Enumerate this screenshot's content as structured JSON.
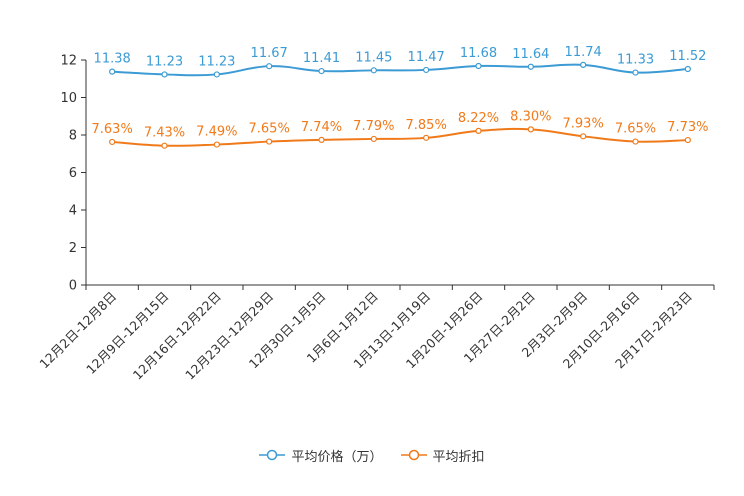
{
  "chart_data": {
    "type": "line",
    "title": "",
    "xlabel": "",
    "ylabel": "",
    "ylim": [
      0,
      12
    ],
    "yticks": [
      0,
      2,
      4,
      6,
      8,
      10,
      12
    ],
    "grid": false,
    "legend_position": "bottom-center",
    "categories": [
      "12月2日-12月8日",
      "12月9日-12月15日",
      "12月16日-12月22日",
      "12月23日-12月29日",
      "12月30日-1月5日",
      "1月6日-1月12日",
      "1月13日-1月19日",
      "1月20日-1月26日",
      "1月27日-2月2日",
      "2月3日-2月9日",
      "2月10日-2月16日",
      "2月17日-2月23日"
    ],
    "series": [
      {
        "name": "平均价格（万）",
        "color": "#3c9bd4",
        "values": [
          11.38,
          11.23,
          11.23,
          11.67,
          11.41,
          11.45,
          11.47,
          11.68,
          11.64,
          11.74,
          11.33,
          11.52
        ],
        "labels": [
          "11.38",
          "11.23",
          "11.23",
          "11.67",
          "11.41",
          "11.45",
          "11.47",
          "11.68",
          "11.64",
          "11.74",
          "11.33",
          "11.52"
        ]
      },
      {
        "name": "平均折扣",
        "color": "#f07a1a",
        "values": [
          7.63,
          7.43,
          7.49,
          7.65,
          7.74,
          7.79,
          7.85,
          8.22,
          8.3,
          7.93,
          7.65,
          7.73
        ],
        "labels": [
          "7.63%",
          "7.43%",
          "7.49%",
          "7.65%",
          "7.74%",
          "7.79%",
          "7.85%",
          "8.22%",
          "8.30%",
          "7.93%",
          "7.65%",
          "7.73%"
        ]
      }
    ]
  }
}
